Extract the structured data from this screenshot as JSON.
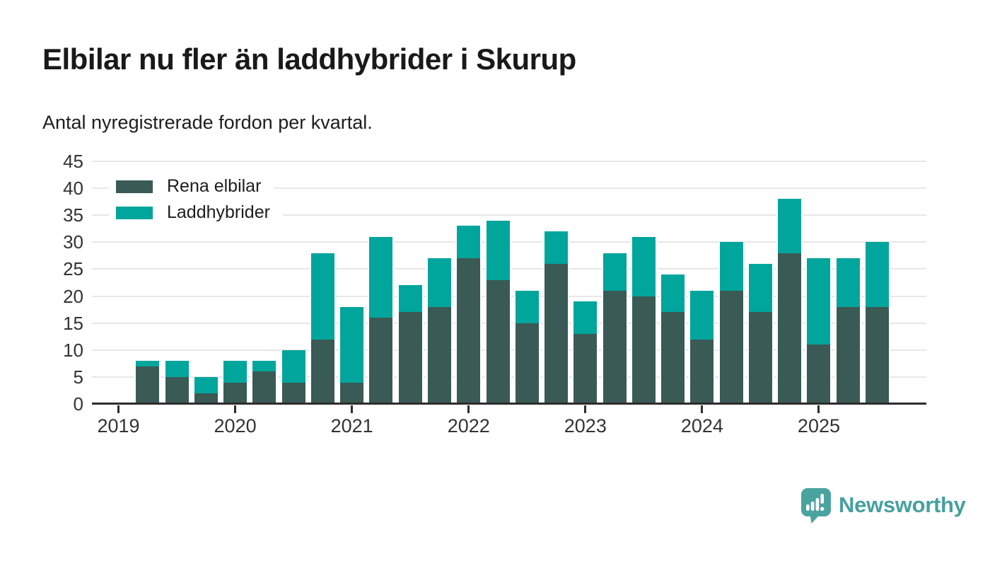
{
  "title": "Elbilar nu fler än laddhybrider i Skurup",
  "subtitle": "Antal nyregistrerade fordon per kvartal.",
  "footer": {
    "brand": "Newsworthy"
  },
  "colors": {
    "rena_elbilar": "#3a5a55",
    "laddhybrider": "#00a59c",
    "brand_teal": "#45a19d",
    "gridline": "#e7e7e7",
    "axis": "#2d2d2d",
    "text": "#191919",
    "tick_text": "#333333"
  },
  "chart_data": {
    "type": "bar",
    "stacked": true,
    "title": "Elbilar nu fler än laddhybrider i Skurup",
    "subtitle": "Antal nyregistrerade fordon per kvartal.",
    "xlabel": "",
    "ylabel": "",
    "ylim": [
      0,
      45
    ],
    "y_ticks": [
      0,
      5,
      10,
      15,
      20,
      25,
      30,
      35,
      40,
      45
    ],
    "grid": true,
    "legend_position": "top-left",
    "x_tick_labels": [
      "2019",
      "2020",
      "2021",
      "2022",
      "2023",
      "2024",
      "2025"
    ],
    "quarters": [
      "2019 Q2",
      "2019 Q3",
      "2019 Q4",
      "2020 Q1",
      "2020 Q2",
      "2020 Q3",
      "2020 Q4",
      "2021 Q1",
      "2021 Q2",
      "2021 Q3",
      "2021 Q4",
      "2022 Q1",
      "2022 Q2",
      "2022 Q3",
      "2022 Q4",
      "2023 Q1",
      "2023 Q2",
      "2023 Q3",
      "2023 Q4",
      "2024 Q1",
      "2024 Q2",
      "2024 Q3",
      "2024 Q4",
      "2025 Q1",
      "2025 Q2",
      "2025 Q3"
    ],
    "series": [
      {
        "name": "Rena elbilar",
        "color": "#3a5a55",
        "values": [
          7,
          5,
          2,
          4,
          6,
          4,
          12,
          4,
          16,
          17,
          18,
          27,
          23,
          15,
          26,
          13,
          21,
          20,
          17,
          12,
          21,
          17,
          28,
          11,
          18,
          18
        ]
      },
      {
        "name": "Laddhybrider",
        "color": "#00a59c",
        "values": [
          1,
          3,
          3,
          4,
          2,
          6,
          16,
          14,
          15,
          5,
          9,
          6,
          11,
          6,
          6,
          6,
          7,
          11,
          7,
          9,
          9,
          9,
          10,
          16,
          9,
          12
        ]
      }
    ],
    "totals": [
      8,
      8,
      5,
      8,
      8,
      10,
      28,
      18,
      31,
      22,
      27,
      33,
      34,
      21,
      32,
      19,
      28,
      31,
      24,
      21,
      30,
      26,
      38,
      27,
      27,
      30
    ]
  }
}
